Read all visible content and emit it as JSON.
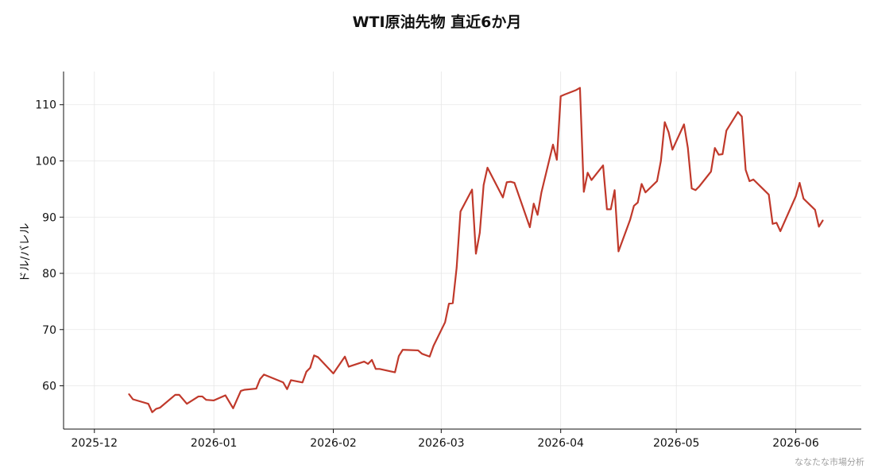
{
  "chart_data": {
    "type": "line",
    "title": "WTI原油先物 直近6か月",
    "ylabel": "ドル/バレル",
    "xlabel": "",
    "ylim": [
      52.3,
      115.9
    ],
    "xlim": [
      "2025-11-23",
      "2026-06-18"
    ],
    "yticks": [
      60,
      70,
      80,
      90,
      100,
      110
    ],
    "xticks": [
      "2025-12-01",
      "2026-01-01",
      "2026-02-01",
      "2026-03-01",
      "2026-04-01",
      "2026-05-01",
      "2026-06-01"
    ],
    "xtick_labels": [
      "2025-12",
      "2026-01",
      "2026-02",
      "2026-03",
      "2026-04",
      "2026-05",
      "2026-06"
    ],
    "grid": true,
    "color": "#c0392b",
    "series": [
      {
        "x": [
          "2025-12-10",
          "2025-12-11",
          "2025-12-15",
          "2025-12-16",
          "2025-12-17",
          "2025-12-18",
          "2025-12-22",
          "2025-12-23",
          "2025-12-25",
          "2025-12-28",
          "2025-12-29",
          "2025-12-30",
          "2026-01-01",
          "2026-01-04",
          "2026-01-06",
          "2026-01-08",
          "2026-01-09",
          "2026-01-12",
          "2026-01-13",
          "2026-01-14",
          "2026-01-19",
          "2026-01-20",
          "2026-01-21",
          "2026-01-24",
          "2026-01-25",
          "2026-01-26",
          "2026-01-27",
          "2026-01-28",
          "2026-02-01",
          "2026-02-04",
          "2026-02-05",
          "2026-02-09",
          "2026-02-10",
          "2026-02-11",
          "2026-02-12",
          "2026-02-13",
          "2026-02-17",
          "2026-02-18",
          "2026-02-19",
          "2026-02-23",
          "2026-02-24",
          "2026-02-26",
          "2026-02-27",
          "2026-03-02",
          "2026-03-03",
          "2026-03-04",
          "2026-03-05",
          "2026-03-06",
          "2026-03-09",
          "2026-03-10",
          "2026-03-11",
          "2026-03-12",
          "2026-03-13",
          "2026-03-17",
          "2026-03-18",
          "2026-03-19",
          "2026-03-20",
          "2026-03-24",
          "2026-03-25",
          "2026-03-26",
          "2026-03-27",
          "2026-03-30",
          "2026-03-31",
          "2026-04-01",
          "2026-04-02",
          "2026-04-05",
          "2026-04-06",
          "2026-04-07",
          "2026-04-08",
          "2026-04-09",
          "2026-04-12",
          "2026-04-13",
          "2026-04-14",
          "2026-04-15",
          "2026-04-16",
          "2026-04-19",
          "2026-04-20",
          "2026-04-21",
          "2026-04-22",
          "2026-04-23",
          "2026-04-26",
          "2026-04-27",
          "2026-04-28",
          "2026-04-29",
          "2026-04-30",
          "2026-05-03",
          "2026-05-04",
          "2026-05-05",
          "2026-05-06",
          "2026-05-07",
          "2026-05-10",
          "2026-05-11",
          "2026-05-12",
          "2026-05-13",
          "2026-05-14",
          "2026-05-17",
          "2026-05-18",
          "2026-05-19",
          "2026-05-20",
          "2026-05-21",
          "2026-05-25",
          "2026-05-26",
          "2026-05-27",
          "2026-05-28",
          "2026-06-01",
          "2026-06-02",
          "2026-06-03",
          "2026-06-06",
          "2026-06-07",
          "2026-06-08"
        ],
        "values": [
          58.5,
          57.6,
          56.8,
          55.3,
          55.9,
          56.1,
          58.4,
          58.4,
          56.8,
          58.1,
          58.1,
          57.5,
          57.4,
          58.3,
          56.0,
          59.1,
          59.3,
          59.5,
          61.2,
          62.0,
          60.6,
          59.4,
          61.0,
          60.6,
          62.5,
          63.2,
          65.4,
          65.1,
          62.2,
          65.2,
          63.4,
          64.3,
          63.9,
          64.6,
          63.0,
          63.0,
          62.4,
          65.3,
          66.4,
          66.3,
          65.7,
          65.2,
          67.1,
          71.3,
          74.6,
          74.7,
          81.0,
          91.0,
          94.9,
          83.5,
          87.2,
          95.7,
          98.8,
          93.5,
          96.2,
          96.3,
          96.1,
          88.2,
          92.4,
          90.4,
          94.4,
          102.9,
          100.2,
          111.5,
          111.8,
          112.6,
          113.0,
          94.5,
          97.9,
          96.6,
          99.2,
          91.4,
          91.4,
          94.8,
          83.9,
          89.5,
          92.0,
          92.6,
          95.9,
          94.4,
          96.4,
          100.0,
          106.9,
          105.1,
          102.0,
          106.5,
          102.3,
          95.1,
          94.8,
          95.5,
          98.1,
          102.3,
          101.1,
          101.2,
          105.4,
          108.7,
          107.9,
          98.4,
          96.4,
          96.7,
          94.0,
          88.8,
          89.0,
          87.5,
          93.7,
          96.1,
          93.3,
          91.3,
          88.3,
          89.4
        ]
      }
    ]
  },
  "watermark": "ななたな市場分析"
}
